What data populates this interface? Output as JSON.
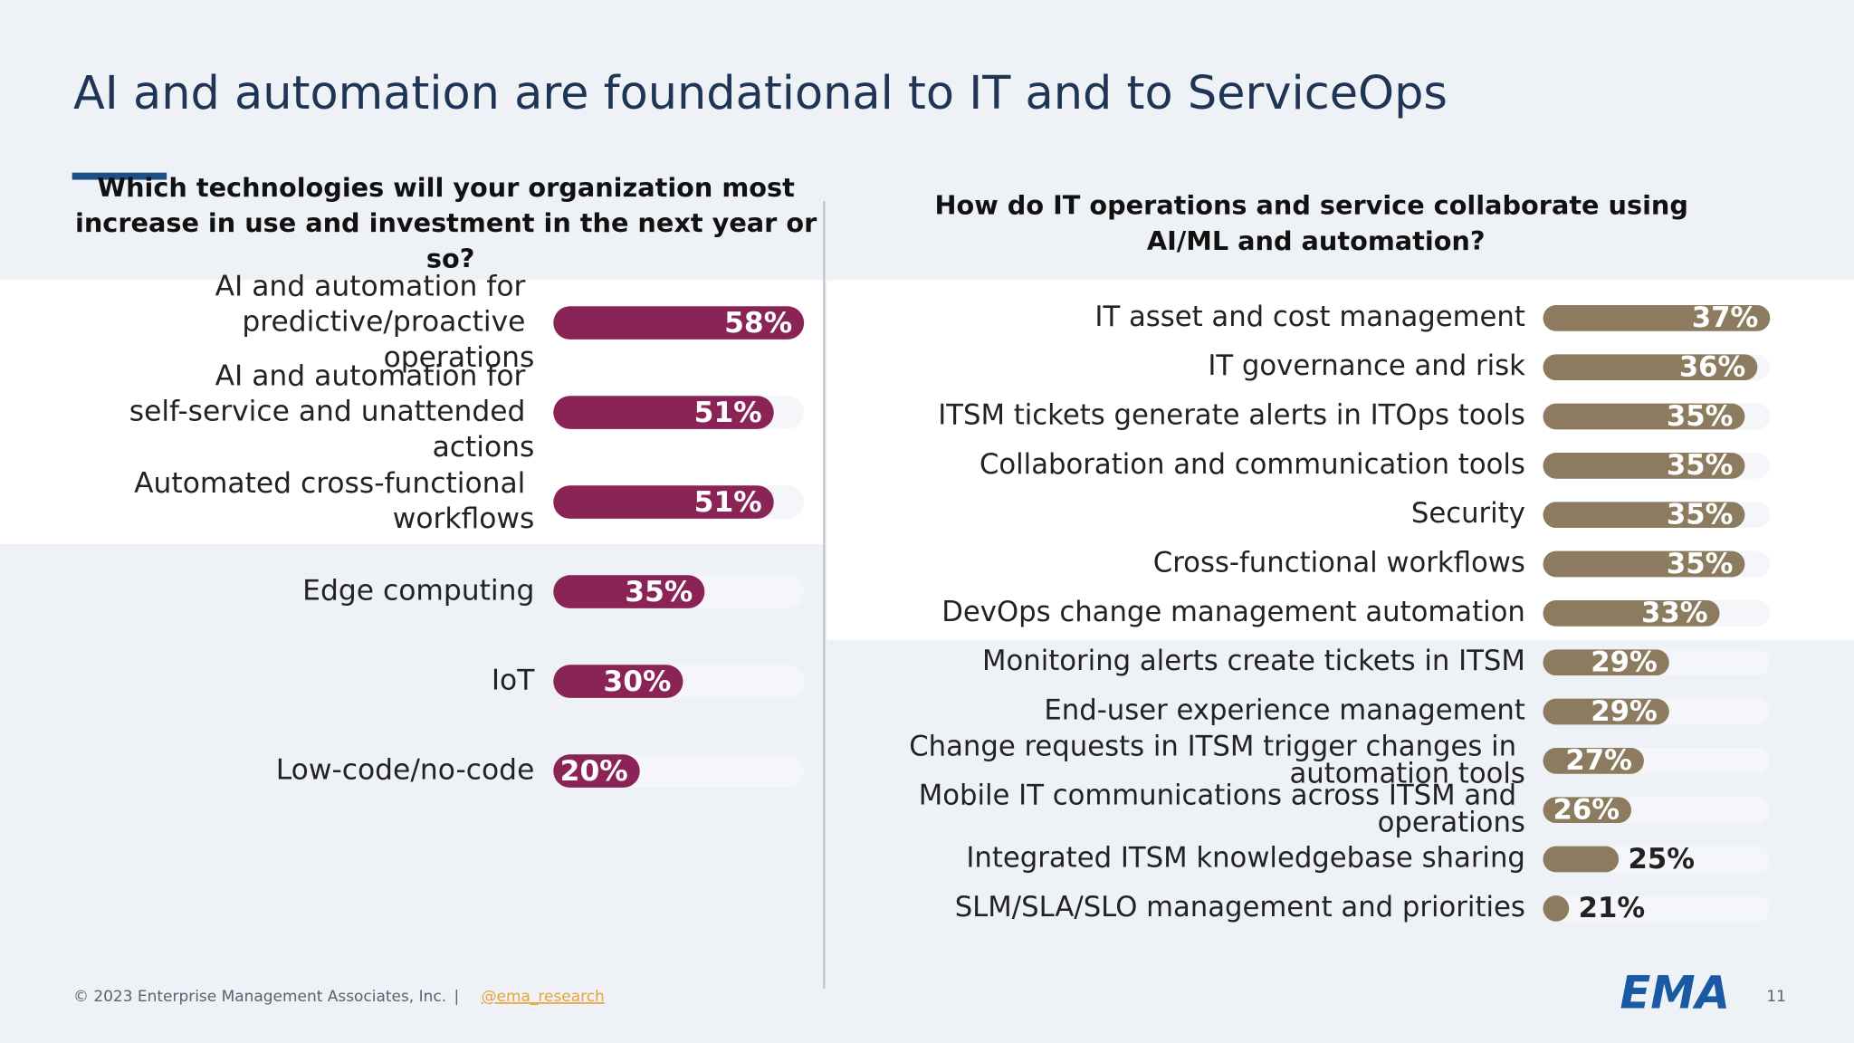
{
  "title": "AI and automation are foundational to IT and to ServiceOps",
  "footer": {
    "copyright": "© 2023 Enterprise Management Associates, Inc.",
    "separator": "|",
    "handle": "@ema_research",
    "page": "11",
    "logo": "EMA"
  },
  "chart_data": [
    {
      "type": "bar",
      "title": "Which technologies will your organization most increase in use and investment in the next year or so?",
      "categories": [
        "AI and automation for predictive/proactive operations",
        "AI and automation for self-service and unattended actions",
        "Automated cross-functional workflows",
        "Edge computing",
        "IoT",
        "Low-code/no-code"
      ],
      "values": [
        58,
        51,
        51,
        35,
        30,
        20
      ],
      "value_labels": [
        "58%",
        "51%",
        "51%",
        "35%",
        "30%",
        "20%"
      ],
      "color": "#8b2456",
      "xlim": [
        0,
        58
      ]
    },
    {
      "type": "bar",
      "title": "How do IT operations and service collaborate using AI/ML and automation?",
      "categories": [
        "IT asset and cost management",
        "IT governance and risk",
        "ITSM tickets generate alerts in ITOps tools",
        "Collaboration and communication tools",
        "Security",
        "Cross-functional workflows",
        "DevOps change management automation",
        "Monitoring alerts create tickets in ITSM",
        "End-user experience management",
        "Change requests in ITSM trigger changes in automation tools",
        "Mobile IT communications across ITSM and operations",
        "Integrated ITSM knowledgebase sharing",
        "SLM/SLA/SLO management and priorities"
      ],
      "values": [
        37,
        36,
        35,
        35,
        35,
        35,
        33,
        29,
        29,
        27,
        26,
        25,
        21
      ],
      "value_labels": [
        "37%",
        "36%",
        "35%",
        "35%",
        "35%",
        "35%",
        "33%",
        "29%",
        "29%",
        "27%",
        "26%",
        "25%",
        "21%"
      ],
      "color": "#8c7b5e",
      "xlim": [
        19,
        37
      ]
    }
  ]
}
